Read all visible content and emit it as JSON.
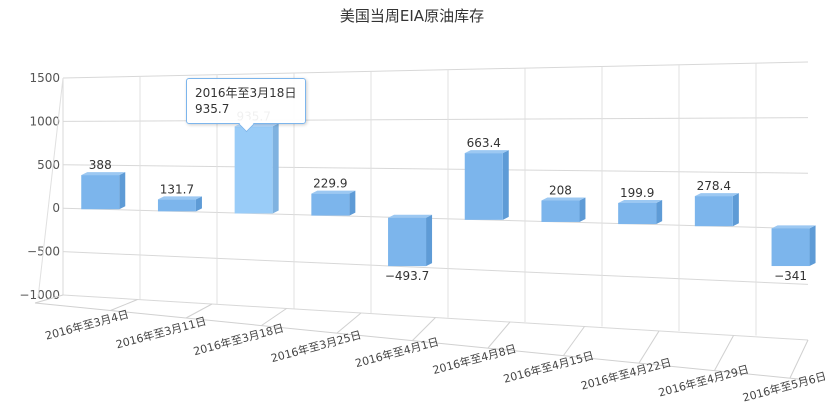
{
  "chart_data": {
    "type": "bar",
    "title": "美国当周EIA原油库存",
    "categories": [
      "2016年至3月4日",
      "2016年至3月11日",
      "2016年至3月18日",
      "2016年至3月25日",
      "2016年至4月1日",
      "2016年至4月8日",
      "2016年至4月15日",
      "2016年至4月22日",
      "2016年至4月29日",
      "2016年至5月6日"
    ],
    "values": [
      388,
      131.7,
      935.7,
      229.9,
      -493.7,
      663.4,
      208,
      199.9,
      278.4,
      -341
    ],
    "value_labels": [
      "388",
      "131.7",
      "935.7",
      "229.9",
      "−493.7",
      "663.4",
      "208",
      "199.9",
      "278.4",
      "−341"
    ],
    "yticks": [
      1500,
      1000,
      500,
      0,
      -500,
      -1000
    ],
    "ytick_labels": [
      "1500",
      "1000",
      "500",
      "0",
      "−500",
      "−1000"
    ],
    "ylim": [
      -1000,
      1500
    ],
    "xlabel": "",
    "ylabel": "",
    "grid": true,
    "color": "#7cb5ec",
    "hover_color": "#99ccf8"
  },
  "tooltip": {
    "title": "2016年至3月18日",
    "value": "935.7",
    "index": 2
  }
}
